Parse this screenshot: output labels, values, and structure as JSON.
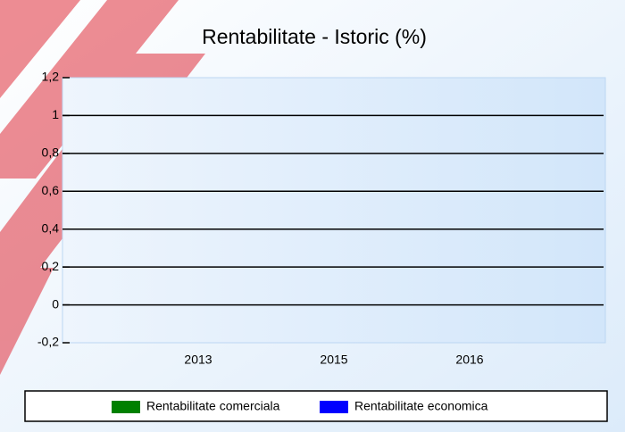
{
  "chart_data": {
    "type": "line",
    "title": "Rentabilitate - Istoric (%)",
    "categories": [
      "2013",
      "2015",
      "2016"
    ],
    "series": [
      {
        "name": "Rentabilitate comerciala",
        "color": "#008000",
        "values": [
          null,
          null,
          null
        ]
      },
      {
        "name": "Rentabilitate economica",
        "color": "#0000ff",
        "values": [
          null,
          null,
          null
        ]
      }
    ],
    "ylim": [
      -0.2,
      1.2
    ],
    "yticks": [
      {
        "value": -0.2,
        "label": "-0,2"
      },
      {
        "value": 0,
        "label": "0"
      },
      {
        "value": 0.2,
        "label": "0,2"
      },
      {
        "value": 0.4,
        "label": "0,4"
      },
      {
        "value": 0.6,
        "label": "0,6"
      },
      {
        "value": 0.8,
        "label": "0,8"
      },
      {
        "value": 1,
        "label": "1"
      },
      {
        "value": 1.2,
        "label": "1,2"
      }
    ],
    "grid": true
  }
}
